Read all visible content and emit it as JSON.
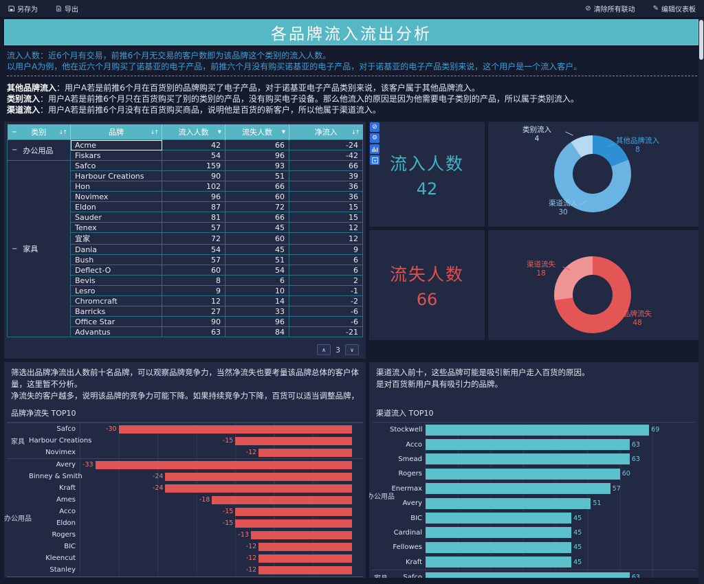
{
  "toolbar": {
    "save_as": "另存为",
    "export": "导出",
    "clear_linkage": "清除所有联动",
    "edit_dashboard": "编辑仪表板"
  },
  "title": "各品牌流入流出分析",
  "intro": {
    "line1": "流入人数：近6个月有交易，前推6个月无交易的客户数即为该品牌这个类别的流入人数。",
    "line2": "以用户A为例，他在近六个月购买了诺基亚的电子产品，前推六个月没有购买诺基亚的电子产品，对于诺基亚的电子产品类别来说，这个用户是一个流入客户。"
  },
  "definitions": [
    {
      "term": "其他品牌流入",
      "text": "：用户A若是前推6个月在百货别的品牌购买了电子产品，对于诺基亚电子产品类别来说，该客户属于其他品牌流入。"
    },
    {
      "term": "类别流入",
      "text": "：用户A若是前推6个月只在百货购买了别的类别的产品，没有购买电子设备。那么他流入的原因是因为他需要电子类别的产品，所以属于类别流入。"
    },
    {
      "term": "渠道流入",
      "text": "：用户A若是前推6个月没有在百货购买商品，说明他是百货的新客户，所以他属于渠道流入。"
    }
  ],
  "icons": {
    "sort": "↓↑",
    "filter": "▼",
    "collapse": "−",
    "chevron_up": "∧",
    "chevron_down": "∨",
    "no_link": "⊘",
    "gear": "⚙",
    "edit": "✎"
  },
  "table": {
    "headers": [
      {
        "label": "类别",
        "icon": "sort"
      },
      {
        "label": "品牌",
        "icon": "sort"
      },
      {
        "label": "流入人数",
        "icon": "filter"
      },
      {
        "label": "流失人数",
        "icon": "filter"
      },
      {
        "label": "净流入",
        "icon": "sort"
      }
    ],
    "selected_brand": "Acme",
    "page": "3",
    "groups": [
      {
        "category": "办公用品",
        "rows": [
          [
            "Acme",
            42,
            66,
            -24
          ],
          [
            "Fiskars",
            54,
            96,
            -42
          ]
        ]
      },
      {
        "category": "家具",
        "rows": [
          [
            "Safco",
            159,
            93,
            66
          ],
          [
            "Harbour Creations",
            90,
            51,
            39
          ],
          [
            "Hon",
            102,
            66,
            36
          ],
          [
            "Novimex",
            96,
            60,
            36
          ],
          [
            "Eldon",
            87,
            72,
            15
          ],
          [
            "Sauder",
            81,
            66,
            15
          ],
          [
            "Tenex",
            57,
            45,
            12
          ],
          [
            "宜家",
            72,
            60,
            12
          ],
          [
            "Dania",
            54,
            45,
            9
          ],
          [
            "Bush",
            57,
            51,
            6
          ],
          [
            "Deflect-O",
            60,
            54,
            6
          ],
          [
            "Bevis",
            8,
            6,
            2
          ],
          [
            "Lesro",
            9,
            10,
            -1
          ],
          [
            "Chromcraft",
            12,
            14,
            -2
          ],
          [
            "Barricks",
            27,
            33,
            -6
          ],
          [
            "Office Star",
            90,
            96,
            -6
          ],
          [
            "Advantus",
            63,
            84,
            -21
          ]
        ]
      }
    ]
  },
  "kpi": {
    "inflow": {
      "label": "流入人数",
      "value": "42",
      "color": "#3eb5c5"
    },
    "outflow": {
      "label": "流失人数",
      "value": "66",
      "color": "#e14f4f"
    }
  },
  "notes": {
    "left1": "筛选出品牌净流出人数前十名品牌，可以观察品牌竞争力，当然净流失也要考量该品牌总体的客户体量，这里暂不分析。",
    "left2": "净流失的客户越多，说明该品牌的竞争力可能下降。如果持续竞争力下降，百货可以适当调整品牌，更换更具竞争力的品牌。",
    "right1": "渠道流入前十，这些品牌可能是吸引新用户走入百货的原因。",
    "right2": "是对百货新用户具有吸引力的品牌。"
  },
  "chart_data": [
    {
      "type": "pie",
      "name": "inflow-composition-donut",
      "total": 42,
      "labels": [
        "其他品牌流入",
        "渠道流入",
        "类别流入"
      ],
      "values": [
        8,
        30,
        4
      ],
      "colors": [
        "#2e8fd2",
        "#6ab4e4",
        "#b5daf1"
      ],
      "label_colors": [
        "#4aa2dc",
        "#8fc6ec",
        "#cfe4f4"
      ]
    },
    {
      "type": "pie",
      "name": "outflow-composition-donut",
      "total": 66,
      "labels": [
        "品牌流失",
        "渠道流失"
      ],
      "values": [
        48,
        18
      ],
      "colors": [
        "#e45555",
        "#ee9494"
      ],
      "label_colors": [
        "#e06060",
        "#e06060"
      ]
    },
    {
      "type": "bar",
      "name": "brand-net-churn-top10",
      "title": "品牌净流失 TOP10",
      "orientation": "horizontal",
      "color": "#e15454",
      "value_color": "#e87b7b",
      "xlim": [
        -35,
        0
      ],
      "xticks": [
        "-35",
        "-30",
        "-25",
        "-20",
        "-15",
        "-10",
        "-5",
        "0"
      ],
      "groups": [
        {
          "name": "家具",
          "items": [
            [
              "Safco",
              -30
            ],
            [
              "Harbour Creations",
              -15
            ],
            [
              "Novimex",
              -12
            ]
          ]
        },
        {
          "name": "办公用品",
          "items": [
            [
              "Avery",
              -33
            ],
            [
              "Binney & Smith",
              -24
            ],
            [
              "Kraft",
              -24
            ],
            [
              "Ames",
              -18
            ],
            [
              "Acco",
              -15
            ],
            [
              "Eldon",
              -15
            ],
            [
              "Rogers",
              -13
            ],
            [
              "BIC",
              -12
            ],
            [
              "Kleencut",
              -12
            ],
            [
              "Stanley",
              -12
            ]
          ]
        }
      ]
    },
    {
      "type": "bar",
      "name": "channel-inflow-top10",
      "title": "渠道流入 TOP10",
      "orientation": "horizontal",
      "color": "#5bc0ca",
      "value_color": "#6ccbd4",
      "xlim": [
        0,
        80
      ],
      "xticks": [],
      "groups": [
        {
          "name": "办公用品",
          "items": [
            [
              "Stockwell",
              69
            ],
            [
              "Acco",
              63
            ],
            [
              "Smead",
              63
            ],
            [
              "Rogers",
              60
            ],
            [
              "Enermax",
              57
            ],
            [
              "Avery",
              51
            ],
            [
              "BIC",
              45
            ],
            [
              "Cardinal",
              45
            ],
            [
              "Fellowes",
              45
            ],
            [
              "Kraft",
              45
            ]
          ]
        },
        {
          "name": "家具",
          "items": [
            [
              "Safco",
              63
            ]
          ]
        }
      ]
    }
  ]
}
